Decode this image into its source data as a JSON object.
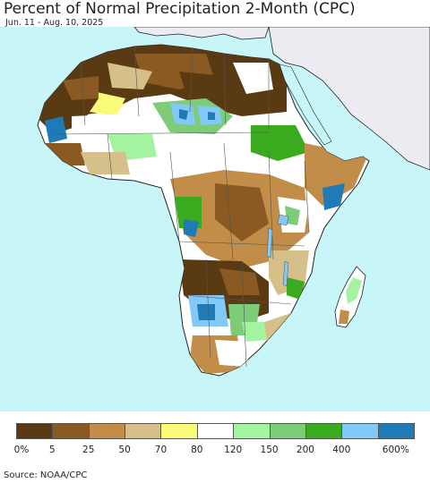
{
  "title": "Percent of Normal Precipitation 2-Month (CPC)",
  "date_range": "Jun. 11 - Aug. 10, 2025",
  "source": "Source: NOAA/CPC",
  "colors": {
    "ocean": "#c8f6f8",
    "outside_region": "#ecebf2",
    "border": "#555555",
    "coast": "#222222"
  },
  "legend": {
    "bins": [
      {
        "color": "#5a3a13"
      },
      {
        "color": "#8b5a23"
      },
      {
        "color": "#c18d48"
      },
      {
        "color": "#d6c08a"
      },
      {
        "color": "#fbfb7a"
      },
      {
        "color": "#ffffff"
      },
      {
        "color": "#a4f3a0"
      },
      {
        "color": "#7dcc78"
      },
      {
        "color": "#3aab1f"
      },
      {
        "color": "#82c8f8"
      },
      {
        "color": "#1f7ab8"
      }
    ],
    "ticks": [
      "0%",
      "5",
      "25",
      "50",
      "70",
      "80",
      "120",
      "150",
      "200",
      "400",
      "600%"
    ]
  }
}
